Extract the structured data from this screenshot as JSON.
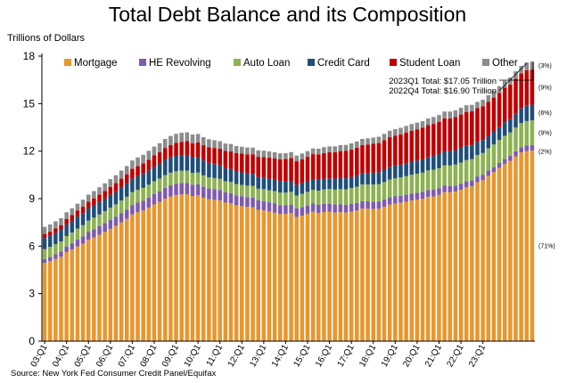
{
  "chart_data": {
    "type": "bar",
    "stacked": true,
    "title": "Total Debt Balance and its Composition",
    "ylabel": "Trillions of Dollars",
    "source": "Source: New York Fed Consumer Credit Panel/Equifax",
    "ylim": [
      0,
      18
    ],
    "yticks": [
      0,
      3,
      6,
      9,
      12,
      15,
      18
    ],
    "grid": false,
    "legend_position": "top",
    "x_tick_labels": [
      "03:Q1",
      "04:Q1",
      "05:Q1",
      "06:Q1",
      "07:Q1",
      "08:Q1",
      "09:Q1",
      "10:Q1",
      "11:Q1",
      "12:Q1",
      "13:Q1",
      "14:Q1",
      "15:Q1",
      "16:Q1",
      "17:Q1",
      "18:Q1",
      "19:Q1",
      "20:Q1",
      "21:Q1",
      "22:Q1",
      "23:Q1"
    ],
    "series": [
      {
        "name": "Mortgage",
        "color": "#E8962E",
        "values": [
          4.94,
          5.05,
          5.2,
          5.33,
          5.63,
          5.79,
          5.98,
          6.15,
          6.4,
          6.55,
          6.72,
          6.9,
          7.09,
          7.28,
          7.5,
          7.72,
          8.0,
          8.15,
          8.25,
          8.43,
          8.64,
          8.8,
          9.0,
          9.14,
          9.23,
          9.27,
          9.28,
          9.16,
          9.21,
          9.06,
          8.96,
          8.92,
          8.88,
          8.75,
          8.7,
          8.57,
          8.53,
          8.48,
          8.46,
          8.3,
          8.26,
          8.19,
          8.12,
          8.03,
          8.03,
          8.08,
          7.84,
          7.93,
          8.05,
          8.17,
          8.1,
          8.16,
          8.17,
          8.12,
          8.15,
          8.12,
          8.18,
          8.25,
          8.37,
          8.36,
          8.35,
          8.36,
          8.48,
          8.63,
          8.69,
          8.74,
          8.81,
          8.88,
          8.94,
          9.0,
          9.12,
          9.14,
          9.24,
          9.41,
          9.4,
          9.44,
          9.56,
          9.71,
          9.78,
          10.04,
          10.16,
          10.44,
          10.67,
          10.93,
          11.18,
          11.39,
          11.67,
          11.92,
          12.01,
          12.04
        ]
      },
      {
        "name": "HE Revolving",
        "color": "#7E5BB0",
        "values": [
          0.24,
          0.26,
          0.29,
          0.32,
          0.35,
          0.39,
          0.43,
          0.46,
          0.49,
          0.52,
          0.54,
          0.56,
          0.57,
          0.58,
          0.59,
          0.59,
          0.6,
          0.6,
          0.61,
          0.63,
          0.65,
          0.67,
          0.69,
          0.7,
          0.71,
          0.71,
          0.71,
          0.71,
          0.7,
          0.69,
          0.68,
          0.68,
          0.67,
          0.66,
          0.65,
          0.64,
          0.63,
          0.62,
          0.61,
          0.6,
          0.59,
          0.58,
          0.57,
          0.56,
          0.55,
          0.54,
          0.54,
          0.53,
          0.52,
          0.52,
          0.51,
          0.51,
          0.51,
          0.51,
          0.49,
          0.49,
          0.49,
          0.48,
          0.47,
          0.47,
          0.46,
          0.46,
          0.46,
          0.45,
          0.45,
          0.44,
          0.44,
          0.44,
          0.43,
          0.43,
          0.42,
          0.42,
          0.41,
          0.41,
          0.4,
          0.39,
          0.39,
          0.38,
          0.37,
          0.36,
          0.35,
          0.34,
          0.32,
          0.32,
          0.32,
          0.32,
          0.32,
          0.33,
          0.34,
          0.34
        ]
      },
      {
        "name": "Auto Loan",
        "color": "#8DB252",
        "values": [
          0.64,
          0.64,
          0.64,
          0.65,
          0.66,
          0.68,
          0.7,
          0.71,
          0.72,
          0.73,
          0.74,
          0.75,
          0.77,
          0.78,
          0.79,
          0.81,
          0.81,
          0.81,
          0.82,
          0.82,
          0.81,
          0.8,
          0.8,
          0.8,
          0.79,
          0.79,
          0.78,
          0.76,
          0.74,
          0.72,
          0.71,
          0.7,
          0.7,
          0.69,
          0.7,
          0.71,
          0.71,
          0.72,
          0.73,
          0.73,
          0.75,
          0.76,
          0.78,
          0.79,
          0.8,
          0.81,
          0.82,
          0.84,
          0.86,
          0.87,
          0.89,
          0.91,
          0.93,
          0.94,
          0.96,
          0.98,
          1.0,
          1.02,
          1.05,
          1.06,
          1.08,
          1.09,
          1.11,
          1.13,
          1.14,
          1.16,
          1.17,
          1.19,
          1.2,
          1.21,
          1.24,
          1.26,
          1.27,
          1.29,
          1.3,
          1.32,
          1.33,
          1.34,
          1.35,
          1.36,
          1.37,
          1.4,
          1.43,
          1.46,
          1.47,
          1.47,
          1.5,
          1.52,
          1.55,
          1.56
        ]
      },
      {
        "name": "Credit Card",
        "color": "#1F4E79",
        "values": [
          0.69,
          0.7,
          0.71,
          0.72,
          0.73,
          0.74,
          0.76,
          0.77,
          0.77,
          0.78,
          0.79,
          0.8,
          0.81,
          0.82,
          0.83,
          0.84,
          0.86,
          0.87,
          0.88,
          0.9,
          0.92,
          0.93,
          0.95,
          0.96,
          0.97,
          0.98,
          0.99,
          0.98,
          0.97,
          0.94,
          0.91,
          0.88,
          0.85,
          0.83,
          0.82,
          0.8,
          0.79,
          0.77,
          0.76,
          0.74,
          0.73,
          0.73,
          0.72,
          0.71,
          0.7,
          0.69,
          0.68,
          0.68,
          0.67,
          0.68,
          0.69,
          0.68,
          0.67,
          0.69,
          0.7,
          0.7,
          0.7,
          0.71,
          0.71,
          0.73,
          0.75,
          0.76,
          0.78,
          0.8,
          0.81,
          0.81,
          0.82,
          0.83,
          0.84,
          0.84,
          0.85,
          0.87,
          0.89,
          0.9,
          0.9,
          0.91,
          0.93,
          0.93,
          0.89,
          0.82,
          0.82,
          0.79,
          0.8,
          0.8,
          0.86,
          0.84,
          0.89,
          0.93,
          0.99,
          0.99
        ]
      },
      {
        "name": "Student Loan",
        "color": "#C00000",
        "values": [
          0.24,
          0.26,
          0.28,
          0.31,
          0.34,
          0.36,
          0.38,
          0.4,
          0.42,
          0.44,
          0.46,
          0.48,
          0.5,
          0.52,
          0.55,
          0.58,
          0.61,
          0.63,
          0.66,
          0.68,
          0.71,
          0.74,
          0.76,
          0.79,
          0.82,
          0.84,
          0.87,
          0.89,
          0.93,
          0.96,
          0.99,
          1.02,
          1.05,
          1.08,
          1.12,
          1.15,
          1.18,
          1.21,
          1.24,
          1.27,
          1.3,
          1.33,
          1.36,
          1.39,
          1.42,
          1.45,
          1.48,
          1.51,
          1.54,
          1.57,
          1.6,
          1.62,
          1.65,
          1.67,
          1.7,
          1.72,
          1.74,
          1.76,
          1.78,
          1.8,
          1.82,
          1.84,
          1.86,
          1.87,
          1.89,
          1.91,
          1.93,
          1.95,
          1.97,
          1.99,
          2.01,
          2.03,
          2.04,
          2.06,
          2.07,
          2.09,
          2.1,
          2.11,
          2.12,
          2.13,
          2.14,
          2.15,
          2.16,
          2.17,
          2.18,
          2.19,
          2.2,
          2.21,
          2.22,
          2.22
        ]
      },
      {
        "name": "Other",
        "color": "#8C8C8C",
        "values": [
          0.47,
          0.46,
          0.45,
          0.44,
          0.43,
          0.43,
          0.43,
          0.44,
          0.45,
          0.46,
          0.47,
          0.48,
          0.49,
          0.5,
          0.51,
          0.52,
          0.53,
          0.54,
          0.55,
          0.56,
          0.56,
          0.56,
          0.57,
          0.57,
          0.57,
          0.57,
          0.56,
          0.55,
          0.53,
          0.51,
          0.5,
          0.49,
          0.48,
          0.47,
          0.46,
          0.45,
          0.44,
          0.43,
          0.42,
          0.41,
          0.4,
          0.39,
          0.38,
          0.38,
          0.37,
          0.37,
          0.36,
          0.36,
          0.36,
          0.36,
          0.36,
          0.37,
          0.37,
          0.37,
          0.38,
          0.38,
          0.38,
          0.39,
          0.39,
          0.39,
          0.4,
          0.4,
          0.4,
          0.41,
          0.41,
          0.41,
          0.42,
          0.42,
          0.42,
          0.42,
          0.42,
          0.43,
          0.43,
          0.43,
          0.43,
          0.43,
          0.43,
          0.43,
          0.41,
          0.4,
          0.4,
          0.41,
          0.42,
          0.42,
          0.43,
          0.45,
          0.46,
          0.47,
          0.49,
          0.5
        ]
      }
    ],
    "annotations": {
      "latest_total": "2023Q1 Total: $17.05 Trillion",
      "prior_total": "2022Q4 Total: $16.90 Trillion",
      "shares": [
        "(3%)",
        "(9%)",
        "(6%)",
        "(9%)",
        "(2%)",
        "(71%)"
      ]
    }
  }
}
